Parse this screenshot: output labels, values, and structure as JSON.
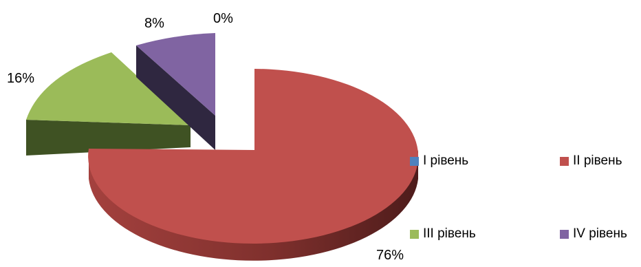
{
  "chart_data": {
    "type": "pie",
    "categories": [
      "I рівень",
      "II рівень",
      "III рівень",
      "IV рівень"
    ],
    "values": [
      0,
      76,
      16,
      8
    ],
    "unit": "%",
    "data_labels": [
      "0%",
      "76%",
      "16%",
      "8%"
    ],
    "colors": [
      "#4F81BD",
      "#C0504D",
      "#9BBB59",
      "#8064A2"
    ],
    "side_colors": [
      "#2C4B70",
      "#7A2E2B",
      "#3F5223",
      "#342A45"
    ],
    "legend_position": "right"
  }
}
